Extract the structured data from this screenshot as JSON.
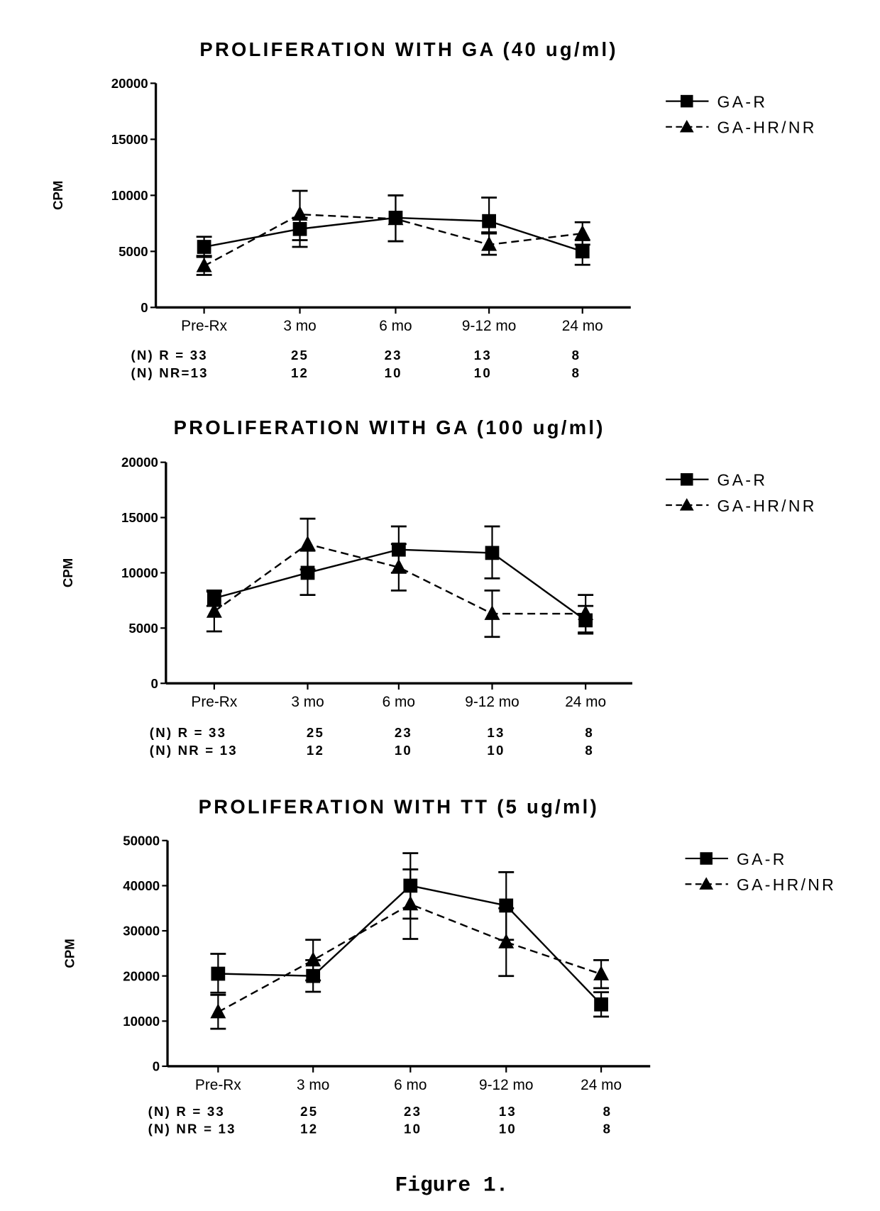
{
  "figure_caption": "Figure 1.",
  "chart_data": [
    {
      "type": "line",
      "title": "PROLIFERATION WITH GA (40 ug/ml)",
      "ylabel": "CPM",
      "xlabel": "",
      "ylim": [
        0,
        20000
      ],
      "yticks": [
        "0",
        "5000",
        "10000",
        "15000",
        "20000"
      ],
      "categories": [
        "Pre-Rx",
        "3 mo",
        "6 mo",
        "9-12 mo",
        "24 mo"
      ],
      "legend_position": "right",
      "series": [
        {
          "name": "GA-R",
          "marker": "square",
          "dash": "solid",
          "values": [
            5400,
            7000,
            8000,
            7700,
            5000
          ],
          "error": [
            [
              4600,
              6300
            ],
            [
              6000,
              8000
            ],
            [
              5900,
              10000
            ],
            [
              6600,
              9800
            ],
            [
              3800,
              6000
            ]
          ]
        },
        {
          "name": "GA-HR/NR",
          "marker": "triangle",
          "dash": "dashed",
          "values": [
            3700,
            8300,
            7900,
            5600,
            6600
          ],
          "error": [
            [
              2900,
              4500
            ],
            [
              5400,
              10400
            ],
            [
              5900,
              10000
            ],
            [
              4700,
              6700
            ],
            [
              5600,
              7600
            ]
          ]
        }
      ],
      "n_rows": [
        {
          "label": "(N) R =  33",
          "values": [
            "25",
            "23",
            "13",
            "8"
          ]
        },
        {
          "label": "(N) NR=13",
          "values": [
            "12",
            "10",
            "10",
            "8"
          ]
        }
      ]
    },
    {
      "type": "line",
      "title": "PROLIFERATION WITH GA (100 ug/ml)",
      "ylabel": "CPM",
      "xlabel": "",
      "ylim": [
        0,
        20000
      ],
      "yticks": [
        "0",
        "5000",
        "10000",
        "15000",
        "20000"
      ],
      "categories": [
        "Pre-Rx",
        "3 mo",
        "6 mo",
        "9-12 mo",
        "24 mo"
      ],
      "legend_position": "right",
      "series": [
        {
          "name": "GA-R",
          "marker": "square",
          "dash": "solid",
          "values": [
            7700,
            10000,
            12100,
            11800,
            5700
          ],
          "error": [
            [
              7000,
              8400
            ],
            [
              8000,
              12000
            ],
            [
              10000,
              14200
            ],
            [
              9500,
              14200
            ],
            [
              4500,
              7000
            ]
          ]
        },
        {
          "name": "GA-HR/NR",
          "marker": "triangle",
          "dash": "dashed",
          "values": [
            6500,
            12600,
            10500,
            6300,
            6300
          ],
          "error": [
            [
              4700,
              8300
            ],
            [
              10300,
              14900
            ],
            [
              8400,
              12600
            ],
            [
              4200,
              8400
            ],
            [
              4600,
              8000
            ]
          ]
        }
      ],
      "n_rows": [
        {
          "label": "(N) R   =  33",
          "values": [
            "25",
            "23",
            "13",
            "8"
          ]
        },
        {
          "label": "(N) NR = 13",
          "values": [
            "12",
            "10",
            "10",
            "8"
          ]
        }
      ]
    },
    {
      "type": "line",
      "title": "PROLIFERATION WITH TT (5 ug/ml)",
      "ylabel": "CPM",
      "xlabel": "",
      "ylim": [
        0,
        50000
      ],
      "yticks": [
        "0",
        "10000",
        "20000",
        "30000",
        "40000",
        "50000"
      ],
      "categories": [
        "Pre-Rx",
        "3 mo",
        "6 mo",
        "9-12 mo",
        "24 mo"
      ],
      "legend_position": "right",
      "series": [
        {
          "name": "GA-R",
          "marker": "square",
          "dash": "solid",
          "values": [
            20500,
            20000,
            40000,
            35600,
            13700
          ],
          "error": [
            [
              16300,
              24900
            ],
            [
              16500,
              23500
            ],
            [
              32700,
              47200
            ],
            [
              28000,
              43000
            ],
            [
              11000,
              16400
            ]
          ]
        },
        {
          "name": "GA-HR/NR",
          "marker": "triangle",
          "dash": "dashed",
          "values": [
            12000,
            23500,
            35900,
            27500,
            20400
          ],
          "error": [
            [
              8300,
              15800
            ],
            [
              19000,
              28000
            ],
            [
              28200,
              43600
            ],
            [
              20000,
              35000
            ],
            [
              17300,
              23500
            ]
          ]
        }
      ],
      "n_rows": [
        {
          "label": "(N) R  =   33",
          "values": [
            "25",
            "23",
            "13",
            "8"
          ]
        },
        {
          "label": "(N) NR = 13",
          "values": [
            "12",
            "10",
            "10",
            "8"
          ]
        }
      ]
    }
  ]
}
